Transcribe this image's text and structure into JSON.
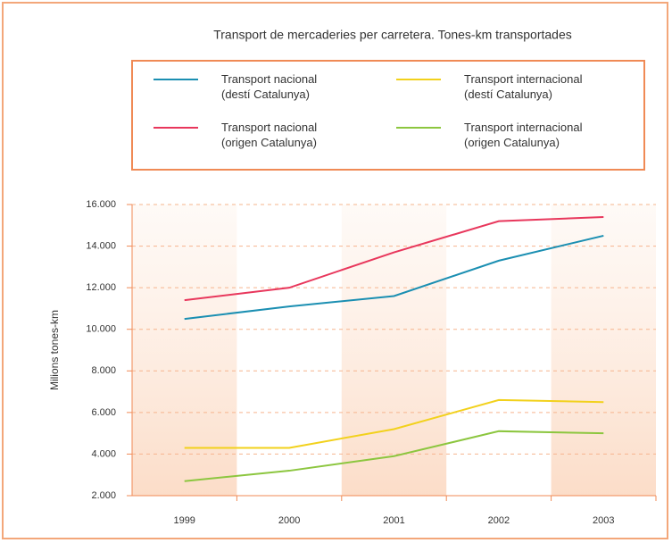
{
  "chart_data": {
    "type": "line",
    "title": "Transport de mercaderies per carretera. Tones-km transportades",
    "y_label": "Milions tones-km",
    "categories": [
      "1999",
      "2000",
      "2001",
      "2002",
      "2003"
    ],
    "series": [
      {
        "name": "Transport nacional\n(destí Catalunya)",
        "color": "#1b8fb2",
        "values": [
          10500,
          11100,
          11600,
          13300,
          14500
        ]
      },
      {
        "name": "Transport nacional\n(origen Catalunya)",
        "color": "#e8375c",
        "values": [
          11400,
          12000,
          13700,
          15200,
          15400
        ]
      },
      {
        "name": "Transport internacional\n(destí Catalunya)",
        "color": "#f2d11c",
        "values": [
          4300,
          4300,
          5200,
          6600,
          6500
        ]
      },
      {
        "name": "Transport internacional\n(origen Catalunya)",
        "color": "#8cc63f",
        "values": [
          2700,
          3200,
          3900,
          5100,
          5000
        ]
      }
    ],
    "ylim": [
      2000,
      16000
    ],
    "yticks": [
      {
        "value": 2000,
        "label": "2.000"
      },
      {
        "value": 4000,
        "label": "4.000"
      },
      {
        "value": 6000,
        "label": "6.000"
      },
      {
        "value": 8000,
        "label": "8.000"
      },
      {
        "value": 10000,
        "label": "10.000"
      },
      {
        "value": 12000,
        "label": "12.000"
      },
      {
        "value": 14000,
        "label": "14.000"
      },
      {
        "value": 16000,
        "label": "16.000"
      }
    ],
    "grid": true
  }
}
